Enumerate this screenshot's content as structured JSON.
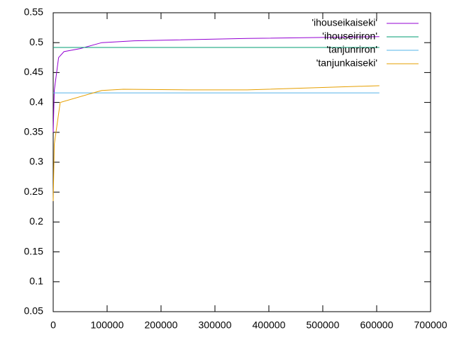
{
  "chart_data": {
    "type": "line",
    "xlim": [
      0,
      700000
    ],
    "xticks": [
      0,
      100000,
      200000,
      300000,
      400000,
      500000,
      600000,
      700000
    ],
    "ylim": [
      0.05,
      0.55
    ],
    "yticks": [
      0.05,
      0.1,
      0.15,
      0.2,
      0.25,
      0.3,
      0.35,
      0.4,
      0.45,
      0.5,
      0.55
    ],
    "legend": "top-right",
    "series": [
      {
        "name": "'ihouseikaiseki'",
        "color": "#9400d3",
        "x": [
          0,
          2000,
          10000,
          20000,
          50000,
          90000,
          150000,
          360000,
          605000
        ],
        "values": [
          0.35,
          0.42,
          0.475,
          0.485,
          0.49,
          0.5,
          0.503,
          0.507,
          0.51
        ]
      },
      {
        "name": "'ihouseiriron'",
        "color": "#009e73",
        "x": [
          0,
          605000
        ],
        "values": [
          0.492,
          0.492
        ]
      },
      {
        "name": "'tanjunriron'",
        "color": "#56b4e9",
        "x": [
          0,
          605000
        ],
        "values": [
          0.416,
          0.416
        ]
      },
      {
        "name": "'tanjunkaiseki'",
        "color": "#e69f00",
        "x": [
          0,
          2000,
          13000,
          90000,
          130000,
          250000,
          360000,
          605000
        ],
        "values": [
          0.235,
          0.33,
          0.4,
          0.42,
          0.422,
          0.421,
          0.421,
          0.428
        ]
      }
    ]
  }
}
